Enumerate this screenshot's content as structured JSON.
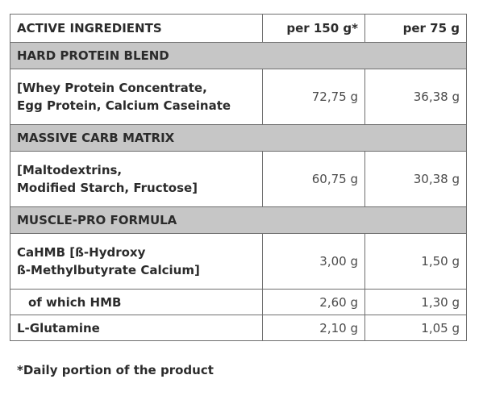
{
  "table": {
    "header": {
      "col1": "ACTIVE INGREDIENTS",
      "col2": "per 150 g*",
      "col3": "per 75 g"
    },
    "sections": [
      {
        "title": "HARD PROTEIN BLEND",
        "rows": [
          {
            "line1": "[Whey Protein Concentrate,",
            "line2": "Egg Protein, Calcium Caseinate",
            "per150": "72,75 g",
            "per75": "36,38 g"
          }
        ]
      },
      {
        "title": "MASSIVE CARB MATRIX",
        "rows": [
          {
            "line1": "[Maltodextrins,",
            "line2": "Modified Starch, Fructose]",
            "per150": "60,75 g",
            "per75": "30,38 g"
          }
        ]
      },
      {
        "title": "MUSCLE-PRO FORMULA",
        "rows": [
          {
            "line1": "CaHMB [ß-Hydroxy",
            "line2": "ß-Methylbutyrate Calcium]",
            "per150": "3,00 g",
            "per75": "1,50 g"
          },
          {
            "line1": "of which HMB",
            "per150": "2,60 g",
            "per75": "1,30 g"
          },
          {
            "line1": "L-Glutamine",
            "per150": "2,10 g",
            "per75": "1,05 g"
          }
        ]
      }
    ]
  },
  "footnote": "*Daily portion of the product"
}
